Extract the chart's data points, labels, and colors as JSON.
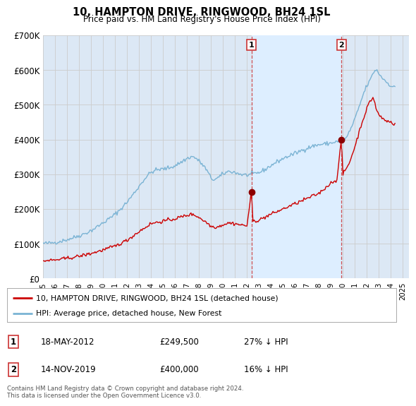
{
  "title": "10, HAMPTON DRIVE, RINGWOOD, BH24 1SL",
  "subtitle": "Price paid vs. HM Land Registry's House Price Index (HPI)",
  "ylim": [
    0,
    700000
  ],
  "yticks": [
    0,
    100000,
    200000,
    300000,
    400000,
    500000,
    600000,
    700000
  ],
  "ytick_labels": [
    "£0",
    "£100K",
    "£200K",
    "£300K",
    "£400K",
    "£500K",
    "£600K",
    "£700K"
  ],
  "hpi_color": "#7ab3d4",
  "price_color": "#cc0000",
  "marker_color": "#8b0000",
  "vline_color": "#cc3333",
  "shade_color": "#ddeeff",
  "grid_color": "#cccccc",
  "bg_color": "#dce8f5",
  "plot_bg": "#ffffff",
  "legend_label_price": "10, HAMPTON DRIVE, RINGWOOD, BH24 1SL (detached house)",
  "legend_label_hpi": "HPI: Average price, detached house, New Forest",
  "transaction1_date": "18-MAY-2012",
  "transaction1_price": "£249,500",
  "transaction1_hpi": "27% ↓ HPI",
  "transaction1_year": 2012.37,
  "transaction1_value": 249500,
  "transaction2_date": "14-NOV-2019",
  "transaction2_price": "£400,000",
  "transaction2_hpi": "16% ↓ HPI",
  "transaction2_year": 2019.87,
  "transaction2_value": 400000,
  "footnote": "Contains HM Land Registry data © Crown copyright and database right 2024.\nThis data is licensed under the Open Government Licence v3.0.",
  "xmin": 1995,
  "xmax": 2025.5
}
